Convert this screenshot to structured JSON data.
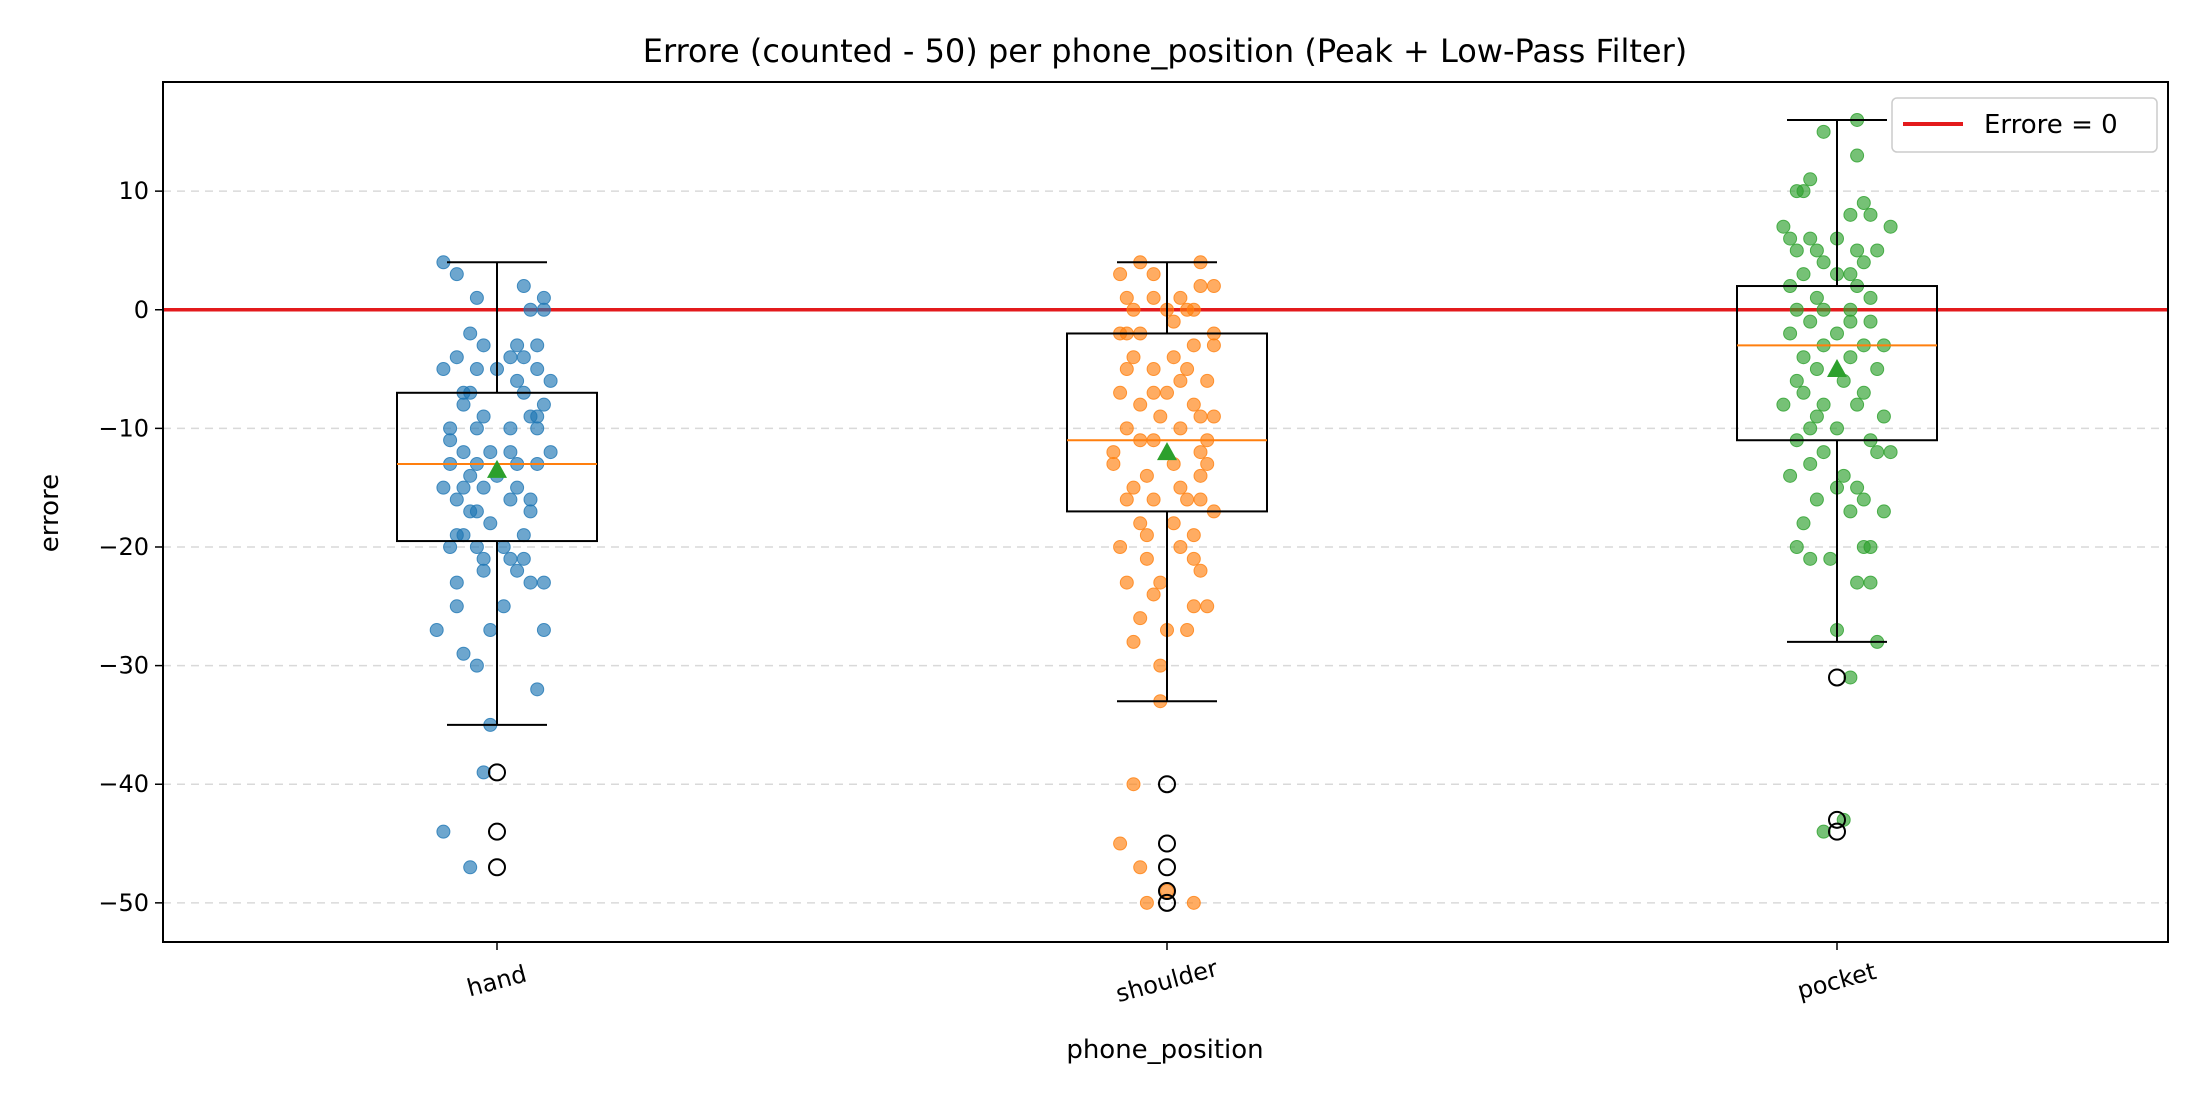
{
  "chart_data": {
    "type": "box",
    "title": "Errore (counted - 50) per phone_position (Peak + Low-Pass Filter)",
    "xlabel": "phone_position",
    "ylabel": "errore",
    "ylim": [
      -53.3,
      19.2
    ],
    "yticks": [
      10,
      0,
      -10,
      -20,
      -30,
      -40,
      -50
    ],
    "ytick_labels": [
      "10",
      "0",
      "−10",
      "−20",
      "−30",
      "−40",
      "−50"
    ],
    "grid": "y-dashed",
    "reference_line": {
      "y": 0,
      "color": "#e31a1c",
      "label": "Errore = 0"
    },
    "legend": {
      "position": "top-right",
      "entries": [
        "Errore = 0"
      ]
    },
    "categories": [
      "hand",
      "shoulder",
      "pocket"
    ],
    "colors": {
      "hand": "#1f77b4",
      "shoulder": "#ff7f0e",
      "pocket": "#2ca02c",
      "median": "#ff7f0e",
      "mean": "#2ca02c"
    },
    "boxes": [
      {
        "category": "hand",
        "q1": -19.5,
        "median": -13,
        "q3": -7,
        "whisker_low": -35,
        "whisker_high": 4,
        "mean": -13.5,
        "outliers": [
          -39,
          -44,
          -47
        ]
      },
      {
        "category": "shoulder",
        "q1": -17,
        "median": -11,
        "q3": -2,
        "whisker_low": -33,
        "whisker_high": 4,
        "mean": -12,
        "outliers": [
          -40,
          -45,
          -47,
          -49,
          -50
        ]
      },
      {
        "category": "pocket",
        "q1": -11,
        "median": -3,
        "q3": 2,
        "whisker_low": -28,
        "whisker_high": 16,
        "mean": -5,
        "outliers": [
          -31,
          -43,
          -44
        ]
      }
    ],
    "points": {
      "hand": [
        [
          -0.08,
          4
        ],
        [
          -0.06,
          3
        ],
        [
          -0.07,
          -20
        ],
        [
          -0.09,
          -27
        ],
        [
          -0.08,
          -44
        ],
        [
          -0.04,
          -47
        ],
        [
          0.04,
          2
        ],
        [
          0.07,
          1
        ],
        [
          0.05,
          0
        ],
        [
          0.07,
          0
        ],
        [
          -0.03,
          1
        ],
        [
          0.03,
          -3
        ],
        [
          0.06,
          -3
        ],
        [
          -0.04,
          -7
        ],
        [
          -0.05,
          -7
        ],
        [
          -0.02,
          -9
        ],
        [
          0.02,
          -10
        ],
        [
          0.05,
          -9
        ],
        [
          -0.07,
          -11
        ],
        [
          -0.05,
          -12
        ],
        [
          -0.03,
          -13
        ],
        [
          0.0,
          -14
        ],
        [
          0.03,
          -13
        ],
        [
          0.06,
          -13
        ],
        [
          -0.08,
          -15
        ],
        [
          -0.06,
          -16
        ],
        [
          -0.03,
          -17
        ],
        [
          0.02,
          -16
        ],
        [
          0.05,
          -17
        ],
        [
          -0.05,
          -19
        ],
        [
          -0.02,
          -21
        ],
        [
          0.02,
          -21
        ],
        [
          0.05,
          -23
        ],
        [
          0.07,
          -23
        ],
        [
          -0.06,
          -23
        ],
        [
          -0.06,
          -25
        ],
        [
          0.06,
          -32
        ],
        [
          -0.03,
          -30
        ],
        [
          -0.05,
          -29
        ],
        [
          0.07,
          -27
        ],
        [
          -0.01,
          -27
        ],
        [
          -0.01,
          -35
        ],
        [
          -0.02,
          -39
        ],
        [
          -0.06,
          -4
        ],
        [
          -0.08,
          -5
        ],
        [
          0.04,
          -4
        ],
        [
          0.06,
          -5
        ],
        [
          0.08,
          -6
        ],
        [
          0.07,
          -8
        ],
        [
          0.03,
          -6
        ],
        [
          -0.04,
          -2
        ],
        [
          -0.02,
          -3
        ],
        [
          0.0,
          -5
        ],
        [
          -0.03,
          -5
        ],
        [
          -0.05,
          -8
        ],
        [
          -0.07,
          -10
        ],
        [
          -0.03,
          -10
        ],
        [
          -0.05,
          -15
        ],
        [
          -0.01,
          -18
        ],
        [
          0.04,
          -19
        ],
        [
          0.01,
          -20
        ],
        [
          -0.03,
          -20
        ],
        [
          0.04,
          -21
        ],
        [
          0.06,
          -9
        ],
        [
          0.05,
          -16
        ],
        [
          -0.01,
          -12
        ],
        [
          0.02,
          -12
        ],
        [
          -0.07,
          -13
        ],
        [
          -0.02,
          -22
        ],
        [
          0.03,
          -22
        ],
        [
          0.04,
          -7
        ],
        [
          0.02,
          -4
        ],
        [
          0.08,
          -12
        ],
        [
          -0.04,
          -17
        ],
        [
          0.06,
          -10
        ],
        [
          -0.06,
          -19
        ],
        [
          -0.02,
          -15
        ],
        [
          -0.04,
          -14
        ],
        [
          0.03,
          -15
        ],
        [
          0.01,
          -25
        ]
      ],
      "shoulder": [
        [
          -0.04,
          4
        ],
        [
          -0.02,
          3
        ],
        [
          0.05,
          4
        ],
        [
          -0.07,
          3
        ],
        [
          0.07,
          2
        ],
        [
          0.05,
          2
        ],
        [
          -0.06,
          1
        ],
        [
          -0.02,
          1
        ],
        [
          0.02,
          1
        ],
        [
          0.04,
          0
        ],
        [
          -0.05,
          0
        ],
        [
          -0.07,
          -2
        ],
        [
          -0.04,
          -2
        ],
        [
          0.01,
          -1
        ],
        [
          0.04,
          -3
        ],
        [
          0.07,
          -2
        ],
        [
          -0.05,
          -4
        ],
        [
          -0.02,
          -5
        ],
        [
          0.03,
          -5
        ],
        [
          0.06,
          -6
        ],
        [
          -0.07,
          -7
        ],
        [
          -0.04,
          -8
        ],
        [
          0.0,
          -7
        ],
        [
          0.04,
          -8
        ],
        [
          0.07,
          -9
        ],
        [
          -0.06,
          -10
        ],
        [
          -0.02,
          -11
        ],
        [
          0.02,
          -10
        ],
        [
          0.05,
          -12
        ],
        [
          -0.08,
          -13
        ],
        [
          -0.03,
          -14
        ],
        [
          0.01,
          -13
        ],
        [
          0.05,
          -14
        ],
        [
          -0.06,
          -16
        ],
        [
          -0.02,
          -16
        ],
        [
          0.03,
          -16
        ],
        [
          0.07,
          -17
        ],
        [
          -0.04,
          -18
        ],
        [
          0.01,
          -18
        ],
        [
          0.04,
          -19
        ],
        [
          -0.07,
          -20
        ],
        [
          -0.03,
          -21
        ],
        [
          0.02,
          -20
        ],
        [
          0.05,
          -22
        ],
        [
          -0.06,
          -23
        ],
        [
          -0.01,
          -23
        ],
        [
          0.04,
          -25
        ],
        [
          -0.04,
          -26
        ],
        [
          0.0,
          -27
        ],
        [
          -0.05,
          -28
        ],
        [
          0.06,
          -25
        ],
        [
          0.03,
          -27
        ],
        [
          -0.01,
          -30
        ],
        [
          -0.01,
          -33
        ],
        [
          -0.07,
          -45
        ],
        [
          -0.04,
          -47
        ],
        [
          -0.03,
          -50
        ],
        [
          0.04,
          -50
        ],
        [
          -0.05,
          -40
        ],
        [
          0.0,
          -49
        ],
        [
          0.07,
          -3
        ],
        [
          -0.06,
          -5
        ],
        [
          0.02,
          -6
        ],
        [
          -0.01,
          -9
        ],
        [
          0.06,
          -13
        ],
        [
          -0.08,
          -12
        ],
        [
          0.02,
          -15
        ],
        [
          -0.03,
          -19
        ],
        [
          0.05,
          -16
        ],
        [
          0.03,
          0
        ],
        [
          -0.06,
          -2
        ],
        [
          0.0,
          0
        ],
        [
          0.06,
          -11
        ],
        [
          -0.05,
          -15
        ],
        [
          0.04,
          -21
        ],
        [
          -0.02,
          -24
        ],
        [
          0.05,
          -9
        ],
        [
          -0.04,
          -11
        ],
        [
          0.01,
          -4
        ],
        [
          -0.02,
          -7
        ]
      ],
      "pocket": [
        [
          0.03,
          16
        ],
        [
          -0.02,
          15
        ],
        [
          0.03,
          13
        ],
        [
          -0.04,
          11
        ],
        [
          -0.06,
          10
        ],
        [
          -0.05,
          10
        ],
        [
          0.04,
          9
        ],
        [
          0.05,
          8
        ],
        [
          0.02,
          8
        ],
        [
          -0.08,
          7
        ],
        [
          0.08,
          7
        ],
        [
          -0.07,
          6
        ],
        [
          -0.04,
          6
        ],
        [
          0.0,
          6
        ],
        [
          -0.06,
          5
        ],
        [
          -0.03,
          5
        ],
        [
          0.03,
          5
        ],
        [
          0.06,
          5
        ],
        [
          -0.02,
          4
        ],
        [
          0.04,
          4
        ],
        [
          -0.05,
          3
        ],
        [
          0.0,
          3
        ],
        [
          0.02,
          3
        ],
        [
          -0.07,
          2
        ],
        [
          0.03,
          2
        ],
        [
          -0.03,
          1
        ],
        [
          0.05,
          1
        ],
        [
          -0.06,
          0
        ],
        [
          -0.02,
          0
        ],
        [
          0.02,
          0
        ],
        [
          0.05,
          -1
        ],
        [
          -0.04,
          -1
        ],
        [
          -0.07,
          -2
        ],
        [
          0.0,
          -2
        ],
        [
          0.04,
          -3
        ],
        [
          -0.02,
          -3
        ],
        [
          0.07,
          -3
        ],
        [
          -0.05,
          -4
        ],
        [
          0.02,
          -4
        ],
        [
          0.06,
          -5
        ],
        [
          -0.03,
          -5
        ],
        [
          -0.06,
          -6
        ],
        [
          0.01,
          -6
        ],
        [
          0.04,
          -7
        ],
        [
          -0.08,
          -8
        ],
        [
          -0.02,
          -8
        ],
        [
          0.03,
          -8
        ],
        [
          0.07,
          -9
        ],
        [
          -0.04,
          -10
        ],
        [
          0.0,
          -10
        ],
        [
          0.05,
          -11
        ],
        [
          -0.06,
          -11
        ],
        [
          -0.02,
          -12
        ],
        [
          0.08,
          -12
        ],
        [
          -0.04,
          -13
        ],
        [
          0.01,
          -14
        ],
        [
          -0.07,
          -14
        ],
        [
          0.03,
          -15
        ],
        [
          0.0,
          -15
        ],
        [
          -0.03,
          -16
        ],
        [
          0.04,
          -16
        ],
        [
          -0.05,
          -18
        ],
        [
          0.02,
          -17
        ],
        [
          0.07,
          -17
        ],
        [
          -0.06,
          -20
        ],
        [
          -0.01,
          -21
        ],
        [
          0.04,
          -20
        ],
        [
          0.05,
          -23
        ],
        [
          0.03,
          -23
        ],
        [
          0.0,
          -27
        ],
        [
          0.06,
          -28
        ],
        [
          0.02,
          -31
        ],
        [
          -0.02,
          -44
        ],
        [
          0.01,
          -43
        ],
        [
          0.05,
          -20
        ],
        [
          -0.04,
          -21
        ],
        [
          0.06,
          -12
        ],
        [
          -0.03,
          -9
        ],
        [
          0.02,
          -1
        ],
        [
          -0.05,
          -7
        ]
      ]
    }
  }
}
